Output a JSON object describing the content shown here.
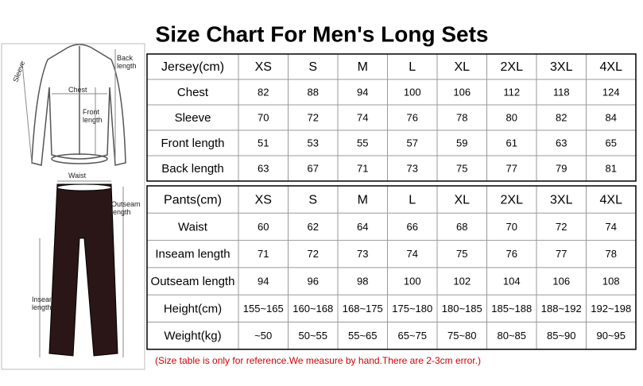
{
  "title": "Size Chart For Men's Long Sets",
  "diagram": {
    "labels": [
      "Back length",
      "Sleeve",
      "Chest",
      "Front length",
      "Waist",
      "Outseam length",
      "Inseam length"
    ]
  },
  "tables": [
    {
      "header": [
        "Jersey(cm)",
        "XS",
        "S",
        "M",
        "L",
        "XL",
        "2XL",
        "3XL",
        "4XL"
      ],
      "rows": [
        [
          "Chest",
          82,
          88,
          94,
          100,
          106,
          112,
          118,
          124
        ],
        [
          "Sleeve",
          70,
          72,
          74,
          76,
          78,
          80,
          82,
          84
        ],
        [
          "Front length",
          51,
          53,
          55,
          57,
          59,
          61,
          63,
          65
        ],
        [
          "Back length",
          63,
          67,
          71,
          73,
          75,
          77,
          79,
          81
        ]
      ]
    },
    {
      "header": [
        "Pants(cm)",
        "XS",
        "S",
        "M",
        "L",
        "XL",
        "2XL",
        "3XL",
        "4XL"
      ],
      "rows": [
        [
          "Waist",
          60,
          62,
          64,
          66,
          68,
          70,
          72,
          74
        ],
        [
          "Inseam length",
          71,
          72,
          73,
          74,
          75,
          76,
          77,
          78
        ],
        [
          "Outseam length",
          94,
          96,
          98,
          100,
          102,
          104,
          106,
          108
        ],
        [
          "Height(cm)",
          "155~165",
          "160~168",
          "168~175",
          "175~180",
          "180~185",
          "185~188",
          "188~192",
          "192~198"
        ],
        [
          "Weight(kg)",
          "~50",
          "50~55",
          "55~65",
          "65~75",
          "75~80",
          "80~85",
          "85~90",
          "90~95"
        ]
      ]
    }
  ],
  "note": "(Size table is only for reference.We measure by hand.There are 2-3cm error.)"
}
